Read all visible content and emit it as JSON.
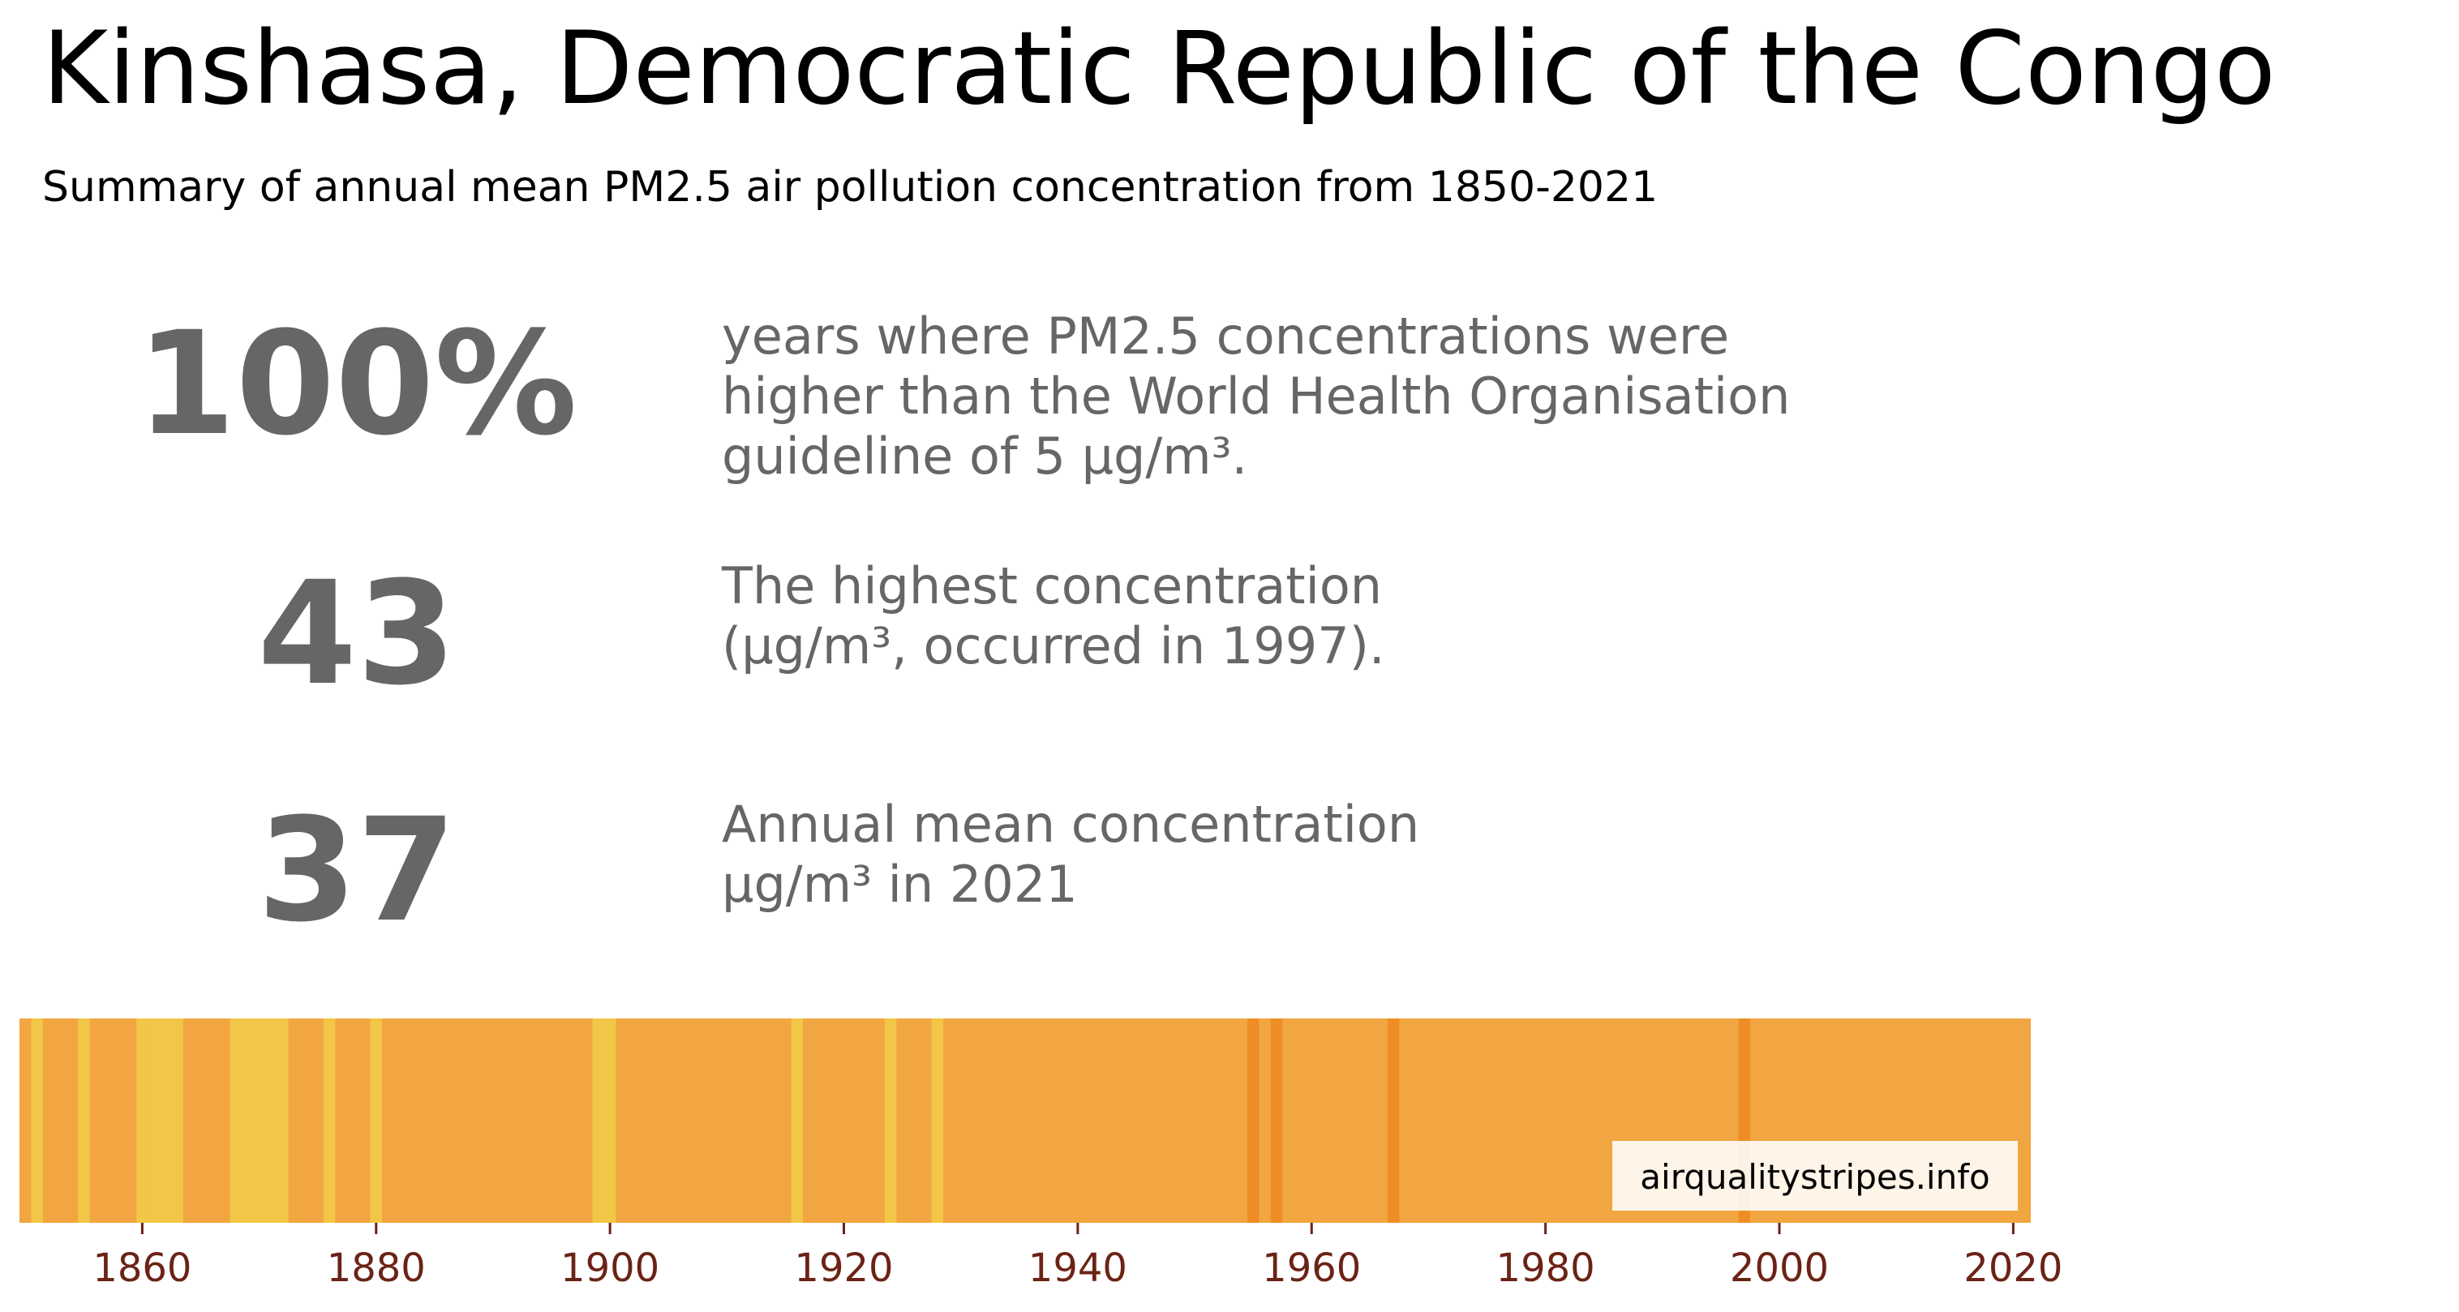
{
  "title": "Kinshasa, Democratic Republic of the Congo",
  "subtitle": "Summary of annual mean PM2.5 air pollution concentration from 1850-2021",
  "stats": [
    {
      "value": "100%",
      "lines": [
        "years where PM2.5 concentrations were",
        "higher than the World Health Organisation",
        "guideline of 5 µg/m³."
      ]
    },
    {
      "value": "43",
      "lines": [
        "The highest concentration",
        "(µg/m³, occurred in 1997)."
      ]
    },
    {
      "value": "37",
      "lines": [
        "Annual mean concentration",
        "µg/m³ in 2021"
      ]
    }
  ],
  "watermark": "airqualitystripes.info",
  "colors": {
    "base": "#f2a641",
    "light": "#f2c646",
    "dark": "#ee8d26",
    "tick": "#6b2315",
    "stat_text": "#666666"
  },
  "chart_data": {
    "type": "heatmap",
    "xlim": [
      1850,
      2022
    ],
    "x_ticks": [
      "1860",
      "1880",
      "1900",
      "1920",
      "1940",
      "1960",
      "1980",
      "2000",
      "2020"
    ],
    "default_level": "base",
    "stripes": [
      {
        "start": 1851,
        "end": 1852,
        "level": "light"
      },
      {
        "start": 1855,
        "end": 1856,
        "level": "light"
      },
      {
        "start": 1860,
        "end": 1861,
        "level": "light"
      },
      {
        "start": 1861,
        "end": 1864,
        "level": "light"
      },
      {
        "start": 1868,
        "end": 1873,
        "level": "light"
      },
      {
        "start": 1876,
        "end": 1877,
        "level": "light"
      },
      {
        "start": 1880,
        "end": 1881,
        "level": "light"
      },
      {
        "start": 1899,
        "end": 1901,
        "level": "light"
      },
      {
        "start": 1916,
        "end": 1917,
        "level": "light"
      },
      {
        "start": 1924,
        "end": 1925,
        "level": "light"
      },
      {
        "start": 1928,
        "end": 1929,
        "level": "light"
      },
      {
        "start": 1955,
        "end": 1956,
        "level": "dark"
      },
      {
        "start": 1957,
        "end": 1958,
        "level": "dark"
      },
      {
        "start": 1967,
        "end": 1968,
        "level": "dark"
      },
      {
        "start": 1997,
        "end": 1998,
        "level": "dark"
      }
    ]
  }
}
